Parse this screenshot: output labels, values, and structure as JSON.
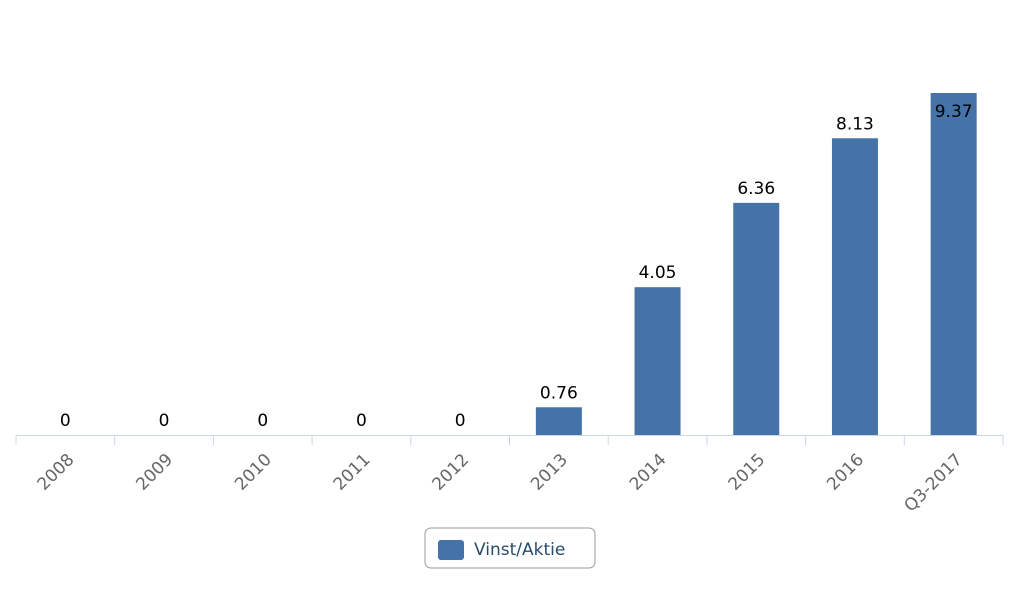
{
  "chart_data": {
    "type": "bar",
    "categories": [
      "2008",
      "2009",
      "2010",
      "2011",
      "2012",
      "2013",
      "2014",
      "2015",
      "2016",
      "Q3-2017"
    ],
    "series": [
      {
        "name": "Vinst/Aktie",
        "color": "#4572a7",
        "values": [
          0,
          0,
          0,
          0,
          0,
          0.76,
          4.05,
          6.36,
          8.13,
          9.37
        ]
      }
    ]
  }
}
